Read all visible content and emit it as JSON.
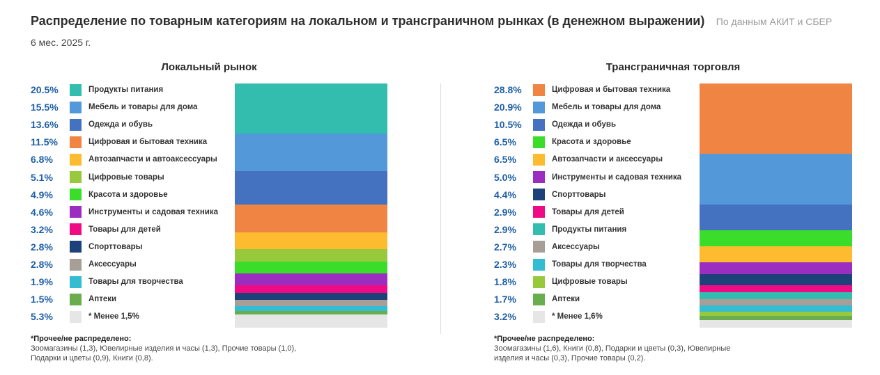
{
  "header": {
    "title": "Распределение по товарным категориям на локальном и трансграничном рынках (в денежном выражении)",
    "source": "По данным АКИТ и СБЕР",
    "period": "6 мес. 2025 г."
  },
  "chart_data": [
    {
      "type": "bar",
      "stacked": true,
      "orientation": "vertical",
      "title": "Локальный рынок",
      "unit": "%",
      "categories": [
        "Продукты питания",
        "Мебель и товары для дома",
        "Одежда и обувь",
        "Цифровая и бытовая техника",
        "Автозапчасти и автоаксессуары",
        "Цифровые товары",
        "Красота и здоровье",
        "Инструменты и садовая техника",
        "Товары для детей",
        "Спорттовары",
        "Аксессуары",
        "Товары для творчества",
        "Аптеки",
        "* Менее 1,5%"
      ],
      "values": [
        20.5,
        15.5,
        13.6,
        11.5,
        6.8,
        5.1,
        4.9,
        4.6,
        3.2,
        2.8,
        2.8,
        1.9,
        1.5,
        5.3
      ],
      "labels": [
        "20.5%",
        "15.5%",
        "13.6%",
        "11.5%",
        "6.8%",
        "5.1%",
        "4.9%",
        "4.6%",
        "3.2%",
        "2.8%",
        "2.8%",
        "1.9%",
        "1.5%",
        "5.3%"
      ],
      "colors": [
        "#33bdaf",
        "#5399da",
        "#4472c0",
        "#f08443",
        "#fdbb2f",
        "#98c93c",
        "#3ade2a",
        "#9b2dc0",
        "#ef0b86",
        "#1d4279",
        "#a79e98",
        "#33bcd2",
        "#6aad4e",
        "#e6e6e6"
      ],
      "note_title": "*Прочее/не распределено:",
      "note_text": "Зоомагазины (1,3), Ювелирные изделия и часы (1,3), Прочие товары (1,0), Подарки и цветы (0,9), Книги (0,8)."
    },
    {
      "type": "bar",
      "stacked": true,
      "orientation": "vertical",
      "title": "Трансграничная торговля",
      "unit": "%",
      "categories": [
        "Цифровая и бытовая техника",
        "Мебель и товары для дома",
        "Одежда и обувь",
        "Красота и здоровье",
        "Автозапчасти и аксессуары",
        "Инструменты и садовая техника",
        "Спорттовары",
        "Товары для детей",
        "Продукты питания",
        "Аксессуары",
        "Товары для творчества",
        "Цифровые товары",
        "Аптеки",
        "* Менее 1,6%"
      ],
      "values": [
        28.8,
        20.9,
        10.5,
        6.5,
        6.5,
        5.0,
        4.4,
        2.9,
        2.9,
        2.7,
        2.3,
        1.8,
        1.7,
        3.2
      ],
      "labels": [
        "28.8%",
        "20.9%",
        "10.5%",
        "6.5%",
        "6.5%",
        "5.0%",
        "4.4%",
        "2.9%",
        "2.9%",
        "2.7%",
        "2.3%",
        "1.8%",
        "1.7%",
        "3.2%"
      ],
      "colors": [
        "#f08443",
        "#5399da",
        "#4472c0",
        "#3ade2a",
        "#fdbb2f",
        "#9b2dc0",
        "#1d4279",
        "#ef0b86",
        "#33bdaf",
        "#a79e98",
        "#33bcd2",
        "#98c93c",
        "#6aad4e",
        "#e6e6e6"
      ],
      "note_title": "*Прочее/не распределено:",
      "note_text": "Зоомагазины (1,6), Книги (0,8), Подарки и цветы (0,3), Ювелирные изделия и часы (0,3), Прочие товары (0,2)."
    }
  ]
}
